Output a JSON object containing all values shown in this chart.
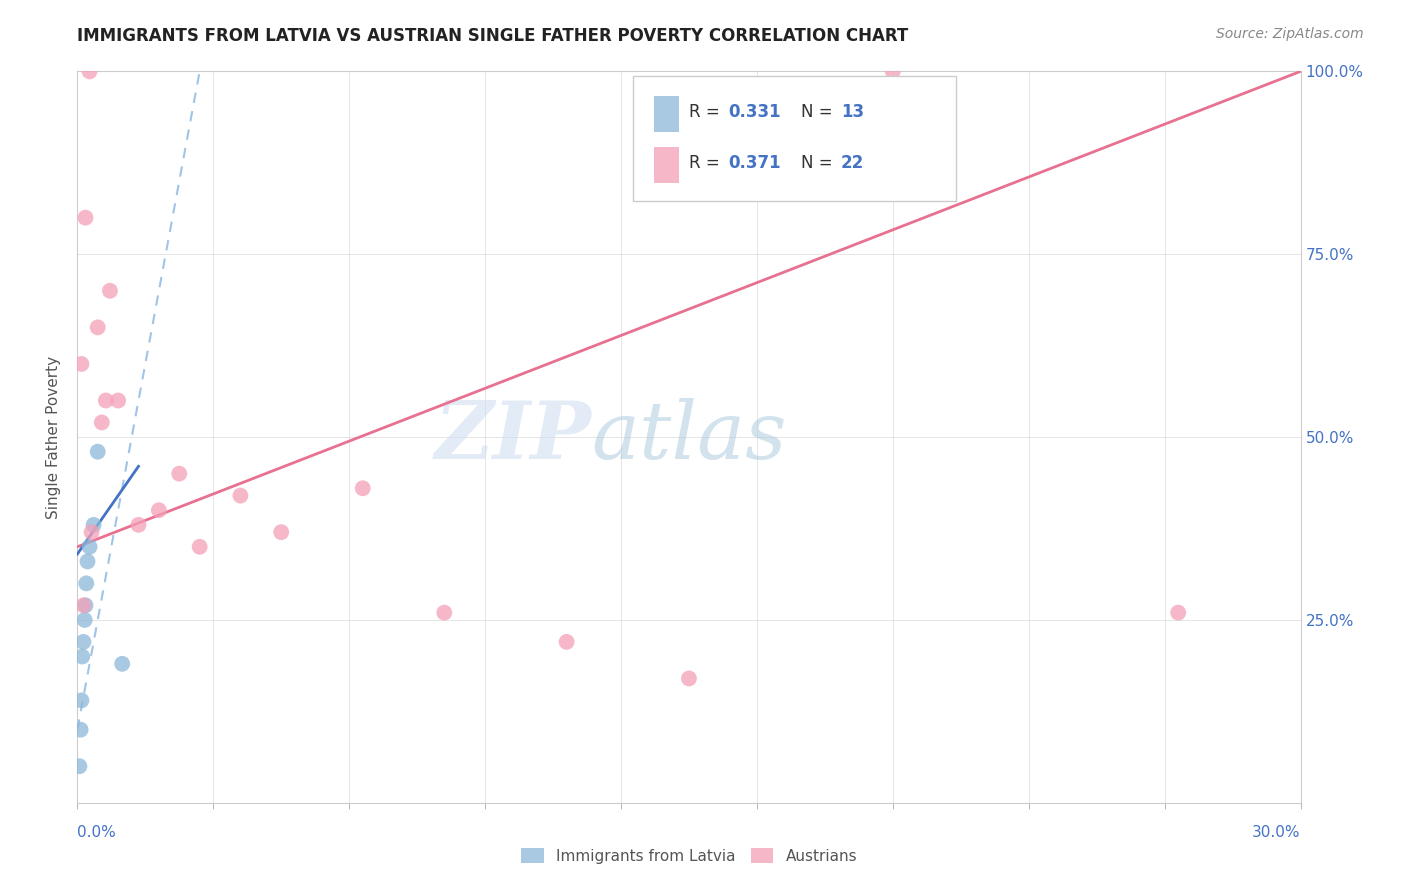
{
  "title": "IMMIGRANTS FROM LATVIA VS AUSTRIAN SINGLE FATHER POVERTY CORRELATION CHART",
  "source": "Source: ZipAtlas.com",
  "legend_label_blue": "Immigrants from Latvia",
  "legend_label_pink": "Austrians",
  "R_blue": 0.331,
  "N_blue": 13,
  "R_pink": 0.371,
  "N_pink": 22,
  "blue_color": "#8bb8d8",
  "pink_color": "#f4a0b8",
  "blue_line_color": "#a0c4e8",
  "blue_solid_color": "#4472c4",
  "pink_line_color": "#e87090",
  "watermark_zip": "ZIP",
  "watermark_atlas": "atlas",
  "xlim": [
    0.0,
    30.0
  ],
  "ylim": [
    0.0,
    100.0
  ],
  "blue_x": [
    0.05,
    0.08,
    0.1,
    0.12,
    0.15,
    0.18,
    0.2,
    0.22,
    0.25,
    0.3,
    0.4,
    0.5,
    1.1
  ],
  "blue_y": [
    5.0,
    10.0,
    14.0,
    20.0,
    22.0,
    25.0,
    27.0,
    30.0,
    33.0,
    35.0,
    38.0,
    48.0,
    19.0
  ],
  "pink_x": [
    0.1,
    0.2,
    0.3,
    0.5,
    0.7,
    0.8,
    1.0,
    1.5,
    2.0,
    2.5,
    3.0,
    4.0,
    5.0,
    7.0,
    9.0,
    12.0,
    15.0,
    20.0,
    27.0,
    0.15,
    0.35,
    0.6
  ],
  "pink_y": [
    60.0,
    80.0,
    100.0,
    65.0,
    55.0,
    70.0,
    55.0,
    38.0,
    40.0,
    45.0,
    35.0,
    42.0,
    37.0,
    43.0,
    26.0,
    22.0,
    17.0,
    100.0,
    26.0,
    27.0,
    37.0,
    52.0
  ],
  "pink_trendline_x0": 0.0,
  "pink_trendline_y0": 35.0,
  "pink_trendline_x1": 30.0,
  "pink_trendline_y1": 100.0,
  "blue_dashed_x0": 0.0,
  "blue_dashed_y0": 10.0,
  "blue_dashed_x1": 3.0,
  "blue_dashed_y1": 100.0,
  "blue_solid_x0": 0.0,
  "blue_solid_y0": 34.0,
  "blue_solid_x1": 1.5,
  "blue_solid_y1": 46.0
}
